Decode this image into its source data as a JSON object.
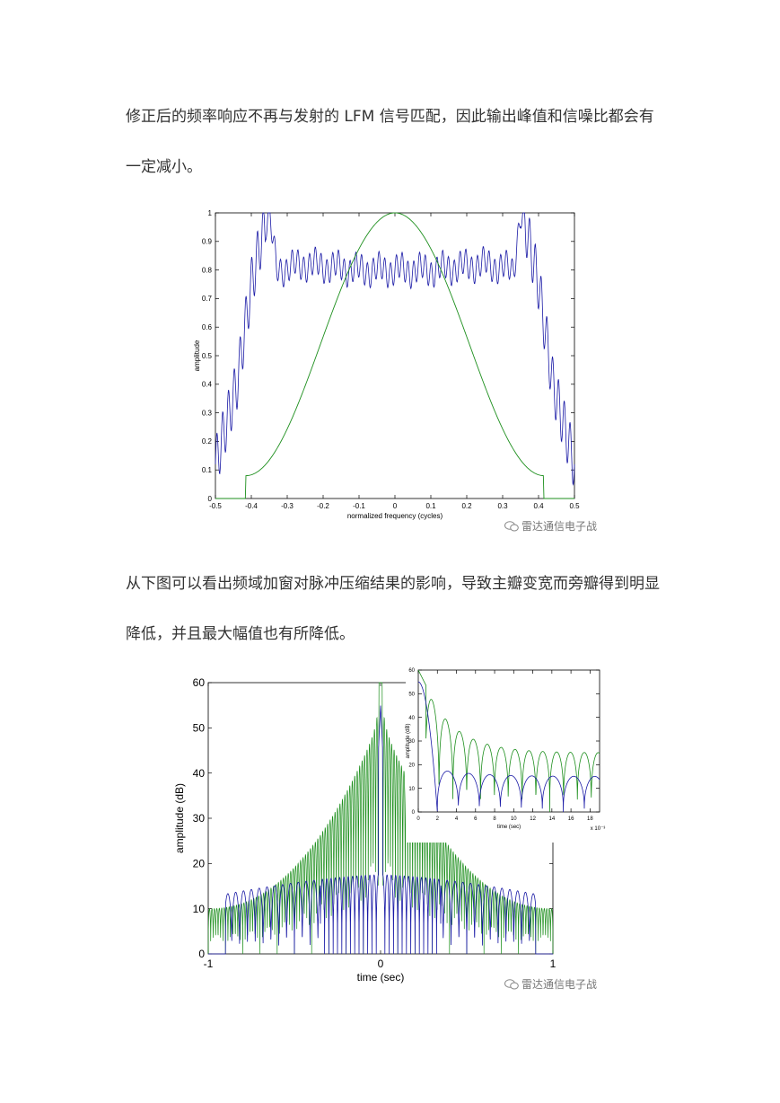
{
  "paragraphs": [
    "修正后的频率响应不再与发射的 LFM 信号匹配，因此输出峰值和信噪比都会有一定减小。",
    "从下图可以看出频域加窗对脉冲压缩结果的影响，导致主瓣变宽而旁瓣得到明显降低，并且最大幅值也有所降低。"
  ],
  "watermark": "雷达通信电子战",
  "colors": {
    "blue": "#1a1aa6",
    "green": "#1d8f1d"
  },
  "chart_data": [
    {
      "type": "line",
      "title": "",
      "xlabel": "normalized frequency (cycles)",
      "ylabel": "amplitude",
      "xlim": [
        -0.5,
        0.5
      ],
      "ylim": [
        0,
        1
      ],
      "xticks": [
        "-0.5",
        "-0.4",
        "-0.3",
        "-0.2",
        "-0.1",
        "0",
        "0.1",
        "0.2",
        "0.3",
        "0.4",
        "0.5"
      ],
      "yticks": [
        "0",
        "0.1",
        "0.2",
        "0.3",
        "0.4",
        "0.5",
        "0.6",
        "0.7",
        "0.8",
        "0.9",
        "1"
      ],
      "series": [
        {
          "color": "blue",
          "description_points": {
            "x": [
              -0.5,
              -0.44,
              -0.4,
              -0.37,
              -0.35,
              -0.33,
              -0.25,
              -0.1,
              0,
              0.1,
              0.25,
              0.33,
              0.35,
              0.37,
              0.4,
              0.44,
              0.5
            ],
            "y": [
              0.12,
              0.4,
              0.75,
              0.92,
              1.0,
              0.8,
              0.82,
              0.8,
              0.8,
              0.8,
              0.82,
              0.8,
              1.0,
              0.92,
              0.75,
              0.4,
              0.12
            ]
          }
        },
        {
          "color": "green",
          "description_points": {
            "x": [
              -0.5,
              -0.415,
              -0.415,
              -0.4,
              -0.3,
              -0.2,
              -0.1,
              0,
              0.1,
              0.2,
              0.3,
              0.4,
              0.415,
              0.415,
              0.5
            ],
            "y": [
              0,
              0,
              0.08,
              0.1,
              0.35,
              0.65,
              0.9,
              1.0,
              0.9,
              0.65,
              0.35,
              0.1,
              0.08,
              0,
              0
            ]
          }
        }
      ]
    },
    {
      "type": "line",
      "title": "",
      "xlabel": "time (sec)",
      "ylabel": "amplitude (dB)",
      "xlim": [
        -1,
        1
      ],
      "ylim": [
        0,
        60
      ],
      "xticks": [
        "-1",
        "0",
        "1"
      ],
      "yticks": [
        "0",
        "10",
        "20",
        "30",
        "40",
        "50",
        "60"
      ],
      "series": [
        {
          "color": "green",
          "peak": 60,
          "edge_sidelobe": 10
        },
        {
          "color": "blue",
          "peak": 55,
          "sidelobe_max": 18
        }
      ]
    },
    {
      "type": "line",
      "title": "",
      "xlabel": "time (sec)",
      "ylabel": "amplitude (dB)",
      "exponent_label": "x 10⁻³",
      "xlim": [
        0,
        19
      ],
      "ylim": [
        0,
        60
      ],
      "xticks": [
        "0",
        "2",
        "4",
        "6",
        "8",
        "10",
        "12",
        "14",
        "16",
        "18"
      ],
      "yticks": [
        "0",
        "10",
        "20",
        "30",
        "40",
        "50",
        "60"
      ],
      "series": [
        {
          "color": "green",
          "start": 60,
          "end_sidelobe": 25
        },
        {
          "color": "blue",
          "start": 55,
          "end_sidelobe": 16
        }
      ]
    }
  ]
}
